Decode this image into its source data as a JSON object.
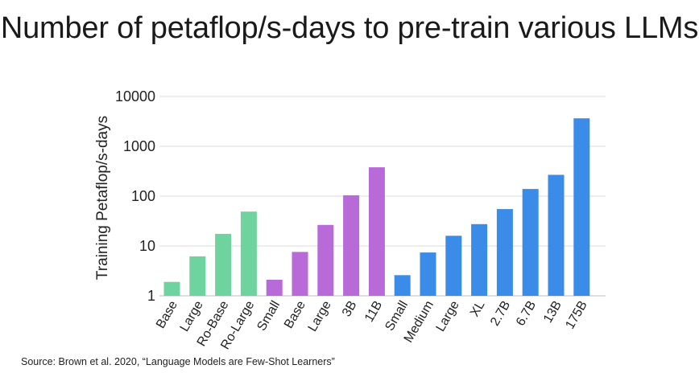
{
  "chart_data": {
    "type": "bar",
    "title": "Number of petaflop/s-days to pre-train various LLMs",
    "ylabel": "Training Petaflop/s-days",
    "xlabel": "",
    "yscale": "log",
    "ylim": [
      1,
      10000
    ],
    "yticks": [
      "1",
      "10",
      "100",
      "1000",
      "10000"
    ],
    "grid": true,
    "groups": [
      {
        "color": "#6fd3a0",
        "categories": [
          "Base",
          "Large",
          "Ro-Base",
          "Ro-Large"
        ],
        "values": [
          1.9,
          6.2,
          17.5,
          49
        ]
      },
      {
        "color": "#b86ad8",
        "categories": [
          "Small",
          "Base",
          "Large",
          "3B",
          "11B"
        ],
        "values": [
          2.1,
          7.6,
          26.5,
          104,
          380
        ]
      },
      {
        "color": "#3b8be8",
        "categories": [
          "Small",
          "Medium",
          "Large",
          "XL",
          "2.7B",
          "6.7B",
          "13B",
          "175B"
        ],
        "values": [
          2.6,
          7.4,
          16,
          27.5,
          55,
          139,
          268,
          3640
        ]
      }
    ]
  },
  "source": "Source: Brown et al. 2020, “Language Models are Few-Shot Learners”"
}
